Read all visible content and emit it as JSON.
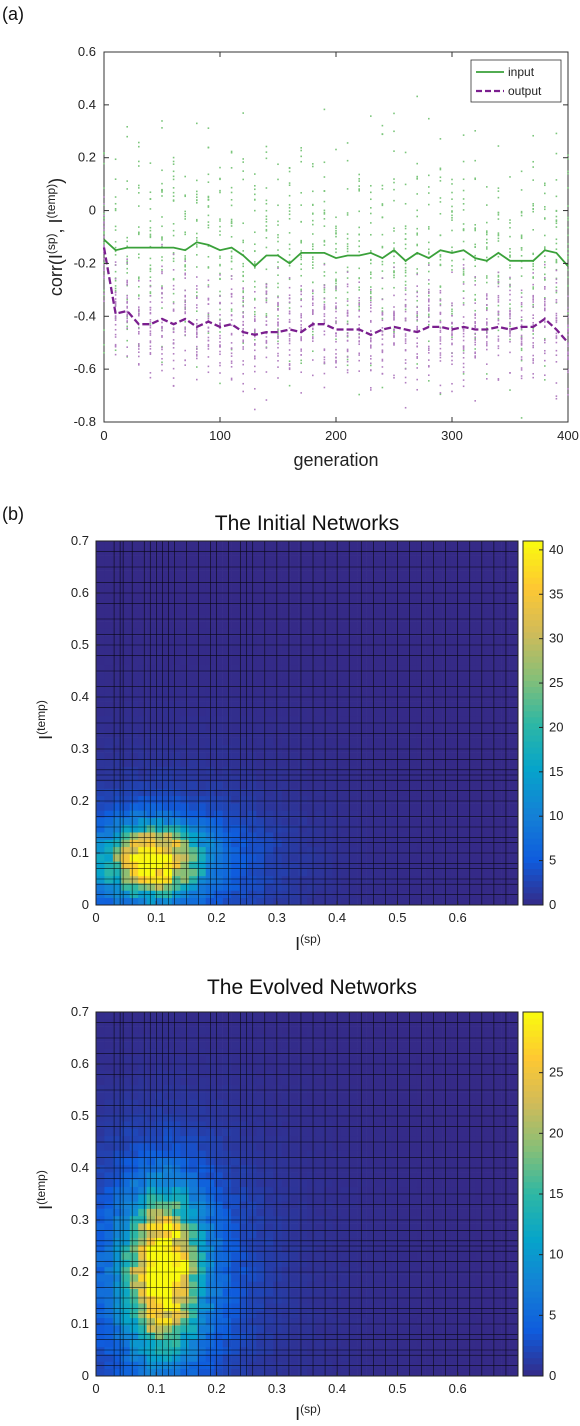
{
  "colors": {
    "input": "#3aa13a",
    "output": "#7b1f8f",
    "input_scatter": "#7cc67c",
    "output_scatter": "#b27fc1",
    "colormap": [
      "#352a87",
      "#0f5cdd",
      "#1481d6",
      "#06a4ca",
      "#2eb7a4",
      "#87bf77",
      "#d1bb59",
      "#fec832",
      "#f9fb0e"
    ]
  },
  "chart_data": [
    {
      "type": "line",
      "panel_label": "(a)",
      "xlabel": "generation",
      "ylabel": "corr(I(sp), I(temp))",
      "xlim": [
        0,
        400
      ],
      "ylim": [
        -0.8,
        0.6
      ],
      "xticks": [
        "0",
        "100",
        "200",
        "300",
        "400"
      ],
      "yticks": [
        "-0.8",
        "-0.6",
        "-0.4",
        "-0.2",
        "0",
        "0.2",
        "0.4",
        "0.6"
      ],
      "legend_position": "top-right",
      "grid": false,
      "x": [
        0,
        10,
        20,
        30,
        40,
        50,
        60,
        70,
        80,
        90,
        100,
        110,
        120,
        130,
        140,
        150,
        160,
        170,
        180,
        190,
        200,
        210,
        220,
        230,
        240,
        250,
        260,
        270,
        280,
        290,
        300,
        310,
        320,
        330,
        340,
        350,
        360,
        370,
        380,
        390,
        400
      ],
      "series": [
        {
          "name": "input",
          "style": "solid",
          "values": [
            -0.11,
            -0.15,
            -0.14,
            -0.14,
            -0.14,
            -0.14,
            -0.14,
            -0.15,
            -0.12,
            -0.13,
            -0.15,
            -0.14,
            -0.17,
            -0.21,
            -0.17,
            -0.17,
            -0.2,
            -0.16,
            -0.16,
            -0.16,
            -0.18,
            -0.17,
            -0.17,
            -0.16,
            -0.18,
            -0.15,
            -0.19,
            -0.16,
            -0.18,
            -0.15,
            -0.16,
            -0.15,
            -0.18,
            -0.19,
            -0.16,
            -0.19,
            -0.19,
            -0.19,
            -0.15,
            -0.16,
            -0.21
          ]
        },
        {
          "name": "output",
          "style": "dashed",
          "values": [
            -0.14,
            -0.39,
            -0.38,
            -0.43,
            -0.43,
            -0.41,
            -0.43,
            -0.41,
            -0.44,
            -0.42,
            -0.44,
            -0.43,
            -0.46,
            -0.47,
            -0.46,
            -0.46,
            -0.45,
            -0.46,
            -0.43,
            -0.43,
            -0.45,
            -0.45,
            -0.45,
            -0.47,
            -0.45,
            -0.44,
            -0.45,
            -0.46,
            -0.44,
            -0.44,
            -0.45,
            -0.44,
            -0.45,
            -0.45,
            -0.44,
            -0.45,
            -0.44,
            -0.44,
            -0.41,
            -0.45,
            -0.5
          ]
        }
      ]
    },
    {
      "type": "heatmap",
      "panel_label": "(b)",
      "title": "The Initial Networks",
      "xlabel": "I(sp)",
      "ylabel": "I(temp)",
      "xlim": [
        0,
        0.7
      ],
      "ylim": [
        0,
        0.7
      ],
      "xticks": [
        "0",
        "0.1",
        "0.2",
        "0.3",
        "0.4",
        "0.5",
        "0.6"
      ],
      "yticks": [
        "0",
        "0.1",
        "0.2",
        "0.3",
        "0.4",
        "0.5",
        "0.6",
        "0.7"
      ],
      "colorbar_range": [
        0,
        41
      ],
      "colorbar_ticks": [
        "0",
        "5",
        "10",
        "15",
        "20",
        "25",
        "30",
        "35",
        "40"
      ],
      "peak": {
        "x": 0.095,
        "y": 0.085,
        "value": 41
      },
      "grid": true
    },
    {
      "type": "heatmap",
      "title": "The Evolved Networks",
      "xlabel": "I(sp)",
      "ylabel": "I(temp)",
      "xlim": [
        0,
        0.7
      ],
      "ylim": [
        0,
        0.7
      ],
      "xticks": [
        "0",
        "0.1",
        "0.2",
        "0.3",
        "0.4",
        "0.5",
        "0.6"
      ],
      "yticks": [
        "0",
        "0.1",
        "0.2",
        "0.3",
        "0.4",
        "0.5",
        "0.6",
        "0.7"
      ],
      "colorbar_range": [
        0,
        30
      ],
      "colorbar_ticks": [
        "0",
        "5",
        "10",
        "15",
        "20",
        "25"
      ],
      "peak": {
        "x": 0.11,
        "y": 0.2,
        "value": 30
      },
      "grid": true
    }
  ]
}
